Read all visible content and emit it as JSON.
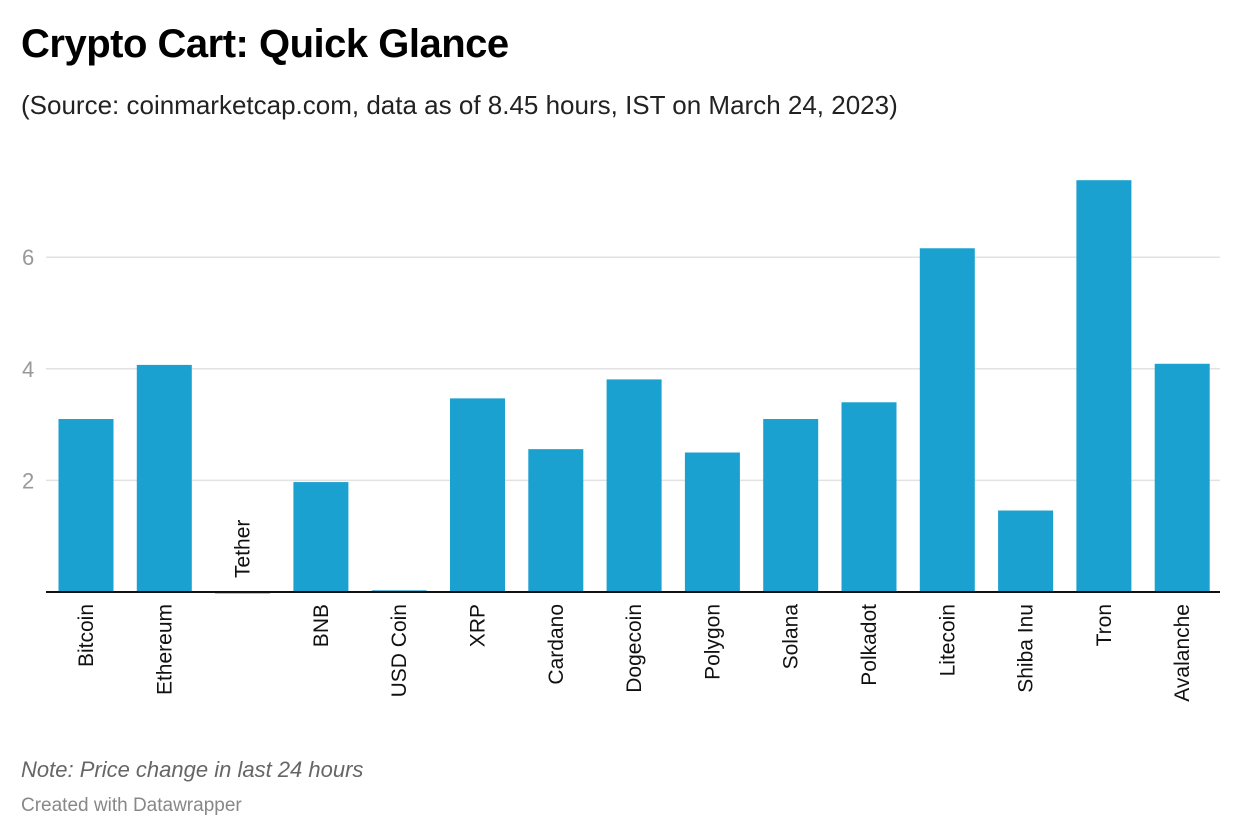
{
  "header": {
    "title": "Crypto Cart: Quick Glance",
    "subtitle": "(Source: coinmarketcap.com, data as of 8.45 hours, IST on March 24, 2023)"
  },
  "footer": {
    "note": "Note: Price change in last 24 hours",
    "credit": "Created with Datawrapper"
  },
  "colors": {
    "bar": "#1ba1cf",
    "grid": "#e2e2e2",
    "axis": "#111111",
    "tick_text": "#999999"
  },
  "chart_data": {
    "type": "bar",
    "categories": [
      "Bitcoin",
      "Ethereum",
      "Tether",
      "BNB",
      "USD Coin",
      "XRP",
      "Cardano",
      "Dogecoin",
      "Polygon",
      "Solana",
      "Polkadot",
      "Litecoin",
      "Shiba Inu",
      "Tron",
      "Avalanche"
    ],
    "values": [
      3.1,
      4.07,
      -0.02,
      1.97,
      0.03,
      3.47,
      2.56,
      3.81,
      2.5,
      3.1,
      3.4,
      6.16,
      1.46,
      7.38,
      4.09
    ],
    "yticks": [
      2,
      4,
      6
    ],
    "ylim": [
      0,
      7.5
    ],
    "grid": true,
    "legend": "none",
    "xlabel": "",
    "ylabel": ""
  }
}
